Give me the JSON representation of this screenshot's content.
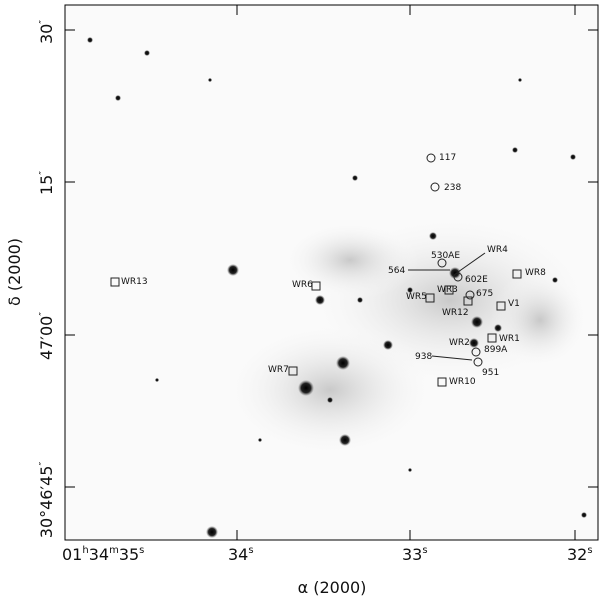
{
  "image": {
    "x_axis": {
      "title": "α (2000)",
      "ticks": [
        {
          "parts": [
            "01",
            "h",
            "34",
            "m",
            "35",
            "s"
          ]
        },
        {
          "parts": [
            "34",
            "s"
          ]
        },
        {
          "parts": [
            "33",
            "s"
          ]
        },
        {
          "parts": [
            "32",
            "s"
          ]
        }
      ]
    },
    "y_axis": {
      "title": "δ (2000)",
      "ticks": [
        {
          "parts": [
            "30",
            "″"
          ]
        },
        {
          "parts": [
            "15",
            "″"
          ]
        },
        {
          "parts": [
            "47′00",
            "″"
          ]
        },
        {
          "parts": [
            "30°46′45",
            "″"
          ]
        }
      ]
    },
    "labels": [
      "117",
      "238",
      "530AE",
      "WR4",
      "564",
      "602E",
      "WR8",
      "WR13",
      "WR6",
      "WR3",
      "WR5",
      "675",
      "WR12",
      "V1",
      "WR1",
      "WR2",
      "899A",
      "938",
      "951",
      "WR7",
      "WR10"
    ]
  }
}
